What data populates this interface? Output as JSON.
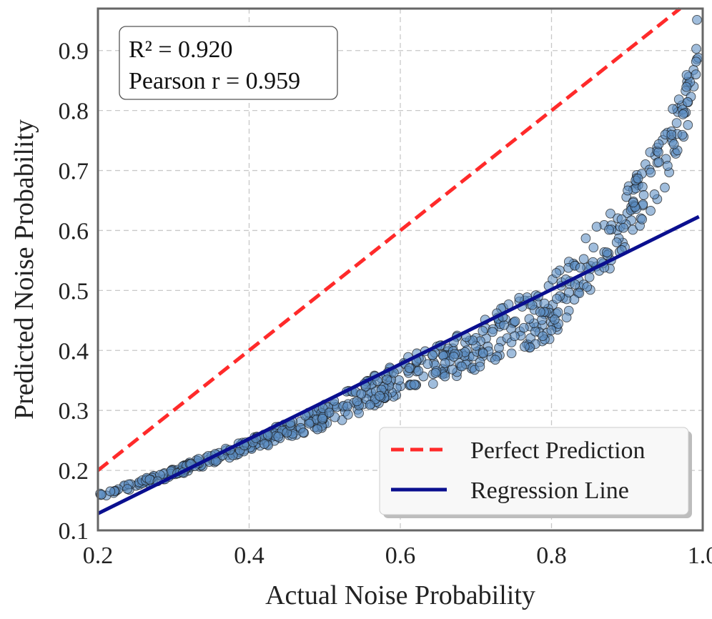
{
  "chart_data": {
    "type": "scatter",
    "xlabel": "Actual Noise Probability",
    "ylabel": "Predicted Noise Probability",
    "xlim": [
      0.2,
      1.0
    ],
    "ylim": [
      0.1,
      0.97
    ],
    "x_ticks": [
      "0.2",
      "0.4",
      "0.6",
      "0.8",
      "1.0"
    ],
    "y_ticks": [
      "0.1",
      "0.2",
      "0.3",
      "0.4",
      "0.5",
      "0.6",
      "0.7",
      "0.8",
      "0.9"
    ],
    "grid": true,
    "stats": {
      "r2": "R² = 0.920",
      "pearson": "Pearson r = 0.959"
    },
    "legend": {
      "placement": "lower-right",
      "entries": [
        "Perfect Prediction",
        "Regression Line"
      ]
    },
    "series": [
      {
        "name": "Perfect Prediction",
        "kind": "line",
        "style": "dashed",
        "color": "#ff2a2a",
        "x": [
          0.2,
          0.97
        ],
        "y": [
          0.2,
          0.97
        ]
      },
      {
        "name": "Regression Line",
        "kind": "line",
        "style": "solid",
        "color": "#0a0f8f",
        "x": [
          0.2,
          0.995
        ],
        "y": [
          0.128,
          0.623
        ]
      },
      {
        "kind": "scatter",
        "color": "#5b8ec2",
        "edge_color": "#1a1a1a",
        "x_range": [
          0.2,
          0.995
        ],
        "y_at_x": {
          "0.2": 0.156,
          "0.3": 0.196,
          "0.4": 0.242,
          "0.5": 0.29,
          "0.6": 0.355,
          "0.7": 0.405,
          "0.8": 0.47,
          "0.9": 0.62,
          "0.95": 0.72,
          "0.98": 0.82,
          "0.995": 0.92
        },
        "y_spread_at_x": {
          "0.2": 0.004,
          "0.4": 0.01,
          "0.6": 0.03,
          "0.8": 0.05,
          "0.95": 0.05
        }
      }
    ]
  }
}
